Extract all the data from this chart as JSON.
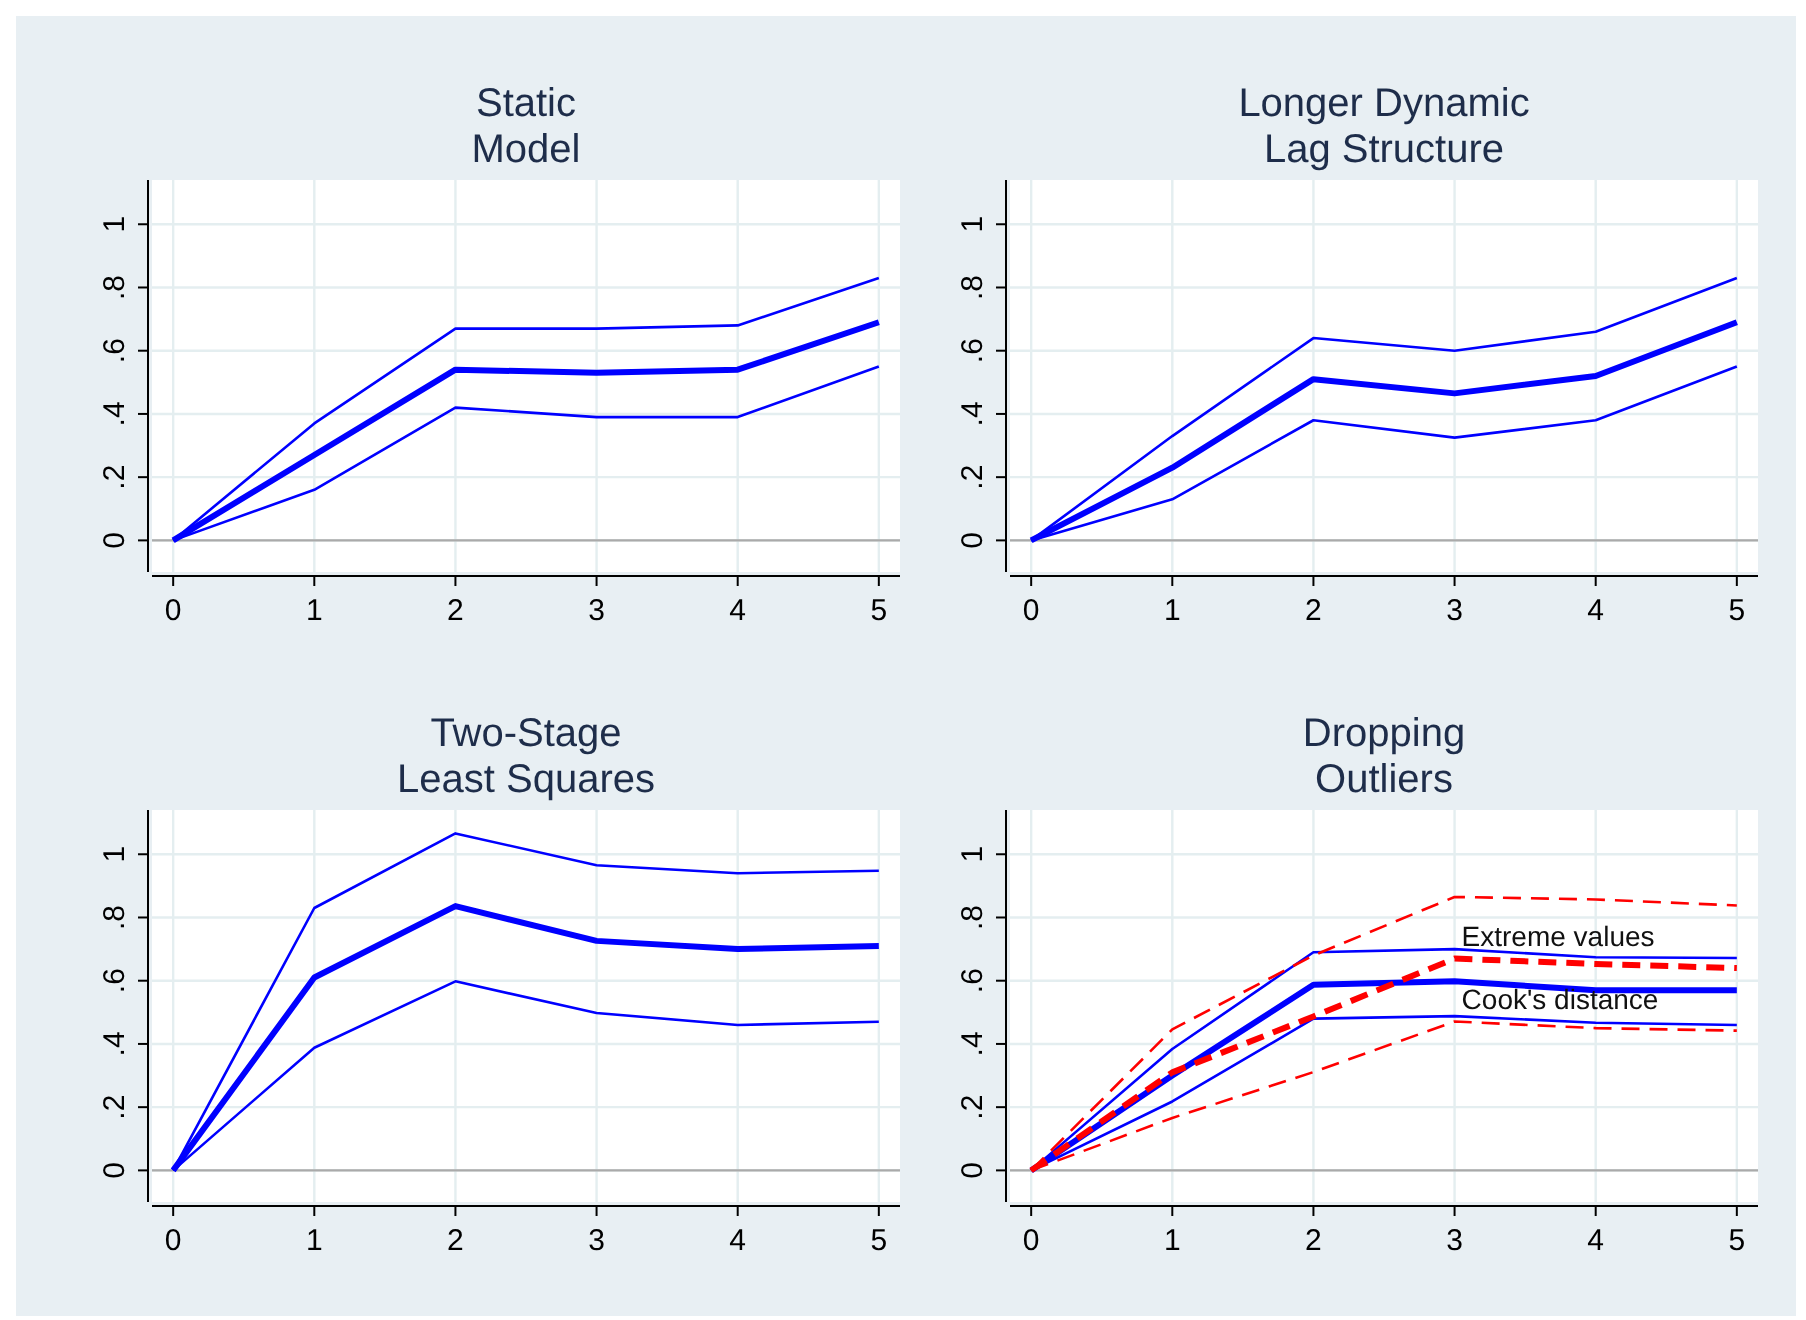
{
  "chart_data": [
    {
      "type": "line",
      "title": "Static\nModel",
      "x": [
        0,
        1,
        2,
        3,
        4,
        5
      ],
      "xlim": [
        -0.15,
        5.15
      ],
      "xticks": [
        0,
        1,
        2,
        3,
        4,
        5
      ],
      "ylim": [
        -0.1,
        1.14
      ],
      "yticks": [
        {
          "value": 0,
          "label": "0"
        },
        {
          "value": 0.2,
          "label": ".2"
        },
        {
          "value": 0.4,
          "label": ".4"
        },
        {
          "value": 0.6,
          "label": ".6"
        },
        {
          "value": 0.8,
          "label": ".8"
        },
        {
          "value": 1,
          "label": "1"
        }
      ],
      "grid": true,
      "ref_lines": [
        {
          "axis": "y",
          "value": 0,
          "color": "#aaaaaa"
        }
      ],
      "series": [
        {
          "color": "#0000ff",
          "values": [
            0,
            0.27,
            0.54,
            0.53,
            0.54,
            0.69
          ]
        },
        {
          "color": "#0000ff",
          "values": [
            0,
            0.37,
            0.67,
            0.67,
            0.68,
            0.83
          ]
        },
        {
          "color": "#0000ff",
          "values": [
            0,
            0.16,
            0.42,
            0.39,
            0.39,
            0.55
          ]
        }
      ]
    },
    {
      "type": "line",
      "title": "Longer Dynamic\nLag Structure",
      "x": [
        0,
        1,
        2,
        3,
        4,
        5
      ],
      "xlim": [
        -0.15,
        5.15
      ],
      "xticks": [
        0,
        1,
        2,
        3,
        4,
        5
      ],
      "ylim": [
        -0.1,
        1.14
      ],
      "yticks": [
        {
          "value": 0,
          "label": "0"
        },
        {
          "value": 0.2,
          "label": ".2"
        },
        {
          "value": 0.4,
          "label": ".4"
        },
        {
          "value": 0.6,
          "label": ".6"
        },
        {
          "value": 0.8,
          "label": ".8"
        },
        {
          "value": 1,
          "label": "1"
        }
      ],
      "grid": true,
      "ref_lines": [
        {
          "axis": "y",
          "value": 0,
          "color": "#aaaaaa"
        }
      ],
      "series": [
        {
          "color": "#0000ff",
          "values": [
            0,
            0.23,
            0.51,
            0.465,
            0.52,
            0.69
          ]
        },
        {
          "color": "#0000ff",
          "values": [
            0,
            0.33,
            0.64,
            0.6,
            0.66,
            0.83
          ]
        },
        {
          "color": "#0000ff",
          "values": [
            0,
            0.13,
            0.38,
            0.325,
            0.38,
            0.55
          ]
        }
      ]
    },
    {
      "type": "line",
      "title": "Two-Stage\nLeast Squares",
      "x": [
        0,
        1,
        2,
        3,
        4,
        5
      ],
      "xlim": [
        -0.15,
        5.15
      ],
      "xticks": [
        0,
        1,
        2,
        3,
        4,
        5
      ],
      "ylim": [
        -0.1,
        1.14
      ],
      "yticks": [
        {
          "value": 0,
          "label": "0"
        },
        {
          "value": 0.2,
          "label": ".2"
        },
        {
          "value": 0.4,
          "label": ".4"
        },
        {
          "value": 0.6,
          "label": ".6"
        },
        {
          "value": 0.8,
          "label": ".8"
        },
        {
          "value": 1,
          "label": "1"
        }
      ],
      "grid": true,
      "ref_lines": [
        {
          "axis": "y",
          "value": 0,
          "color": "#aaaaaa"
        }
      ],
      "series": [
        {
          "color": "#0000ff",
          "values": [
            0,
            0.61,
            0.836,
            0.726,
            0.7,
            0.71
          ]
        },
        {
          "color": "#0000ff",
          "values": [
            0,
            0.83,
            1.066,
            0.965,
            0.94,
            0.948
          ]
        },
        {
          "color": "#0000ff",
          "values": [
            0,
            0.388,
            0.598,
            0.498,
            0.46,
            0.47
          ]
        }
      ]
    },
    {
      "type": "line",
      "title": "Dropping\nOutliers",
      "x": [
        0,
        1,
        2,
        3,
        4,
        5
      ],
      "xlim": [
        -0.15,
        5.15
      ],
      "xticks": [
        0,
        1,
        2,
        3,
        4,
        5
      ],
      "ylim": [
        -0.1,
        1.14
      ],
      "yticks": [
        {
          "value": 0,
          "label": "0"
        },
        {
          "value": 0.2,
          "label": ".2"
        },
        {
          "value": 0.4,
          "label": ".4"
        },
        {
          "value": 0.6,
          "label": ".6"
        },
        {
          "value": 0.8,
          "label": ".8"
        },
        {
          "value": 1,
          "label": "1"
        }
      ],
      "grid": true,
      "ref_lines": [
        {
          "axis": "y",
          "value": 0,
          "color": "#aaaaaa"
        }
      ],
      "annotations": [
        {
          "text": "Extreme values",
          "x": 3.05,
          "y": 0.71
        },
        {
          "text": "Cook's distance",
          "x": 3.05,
          "y": 0.51
        }
      ],
      "series": [
        {
          "color": "#0000ff",
          "values": [
            0,
            0.3,
            0.587,
            0.598,
            0.57,
            0.57
          ]
        },
        {
          "color": "#0000ff",
          "values": [
            0,
            0.384,
            0.69,
            0.7,
            0.674,
            0.672
          ]
        },
        {
          "color": "#0000ff",
          "values": [
            0,
            0.218,
            0.48,
            0.488,
            0.467,
            0.46
          ]
        },
        {
          "color": "#ff0000",
          "line_style": "dashed",
          "values": [
            0,
            0.31,
            0.487,
            0.67,
            0.653,
            0.64
          ]
        },
        {
          "color": "#ff0000",
          "line_style": "dashed",
          "values": [
            0,
            0.446,
            0.68,
            0.865,
            0.857,
            0.838
          ]
        },
        {
          "color": "#ff0000",
          "line_style": "dashed",
          "values": [
            0,
            0.166,
            0.311,
            0.471,
            0.45,
            0.442
          ]
        }
      ]
    }
  ]
}
